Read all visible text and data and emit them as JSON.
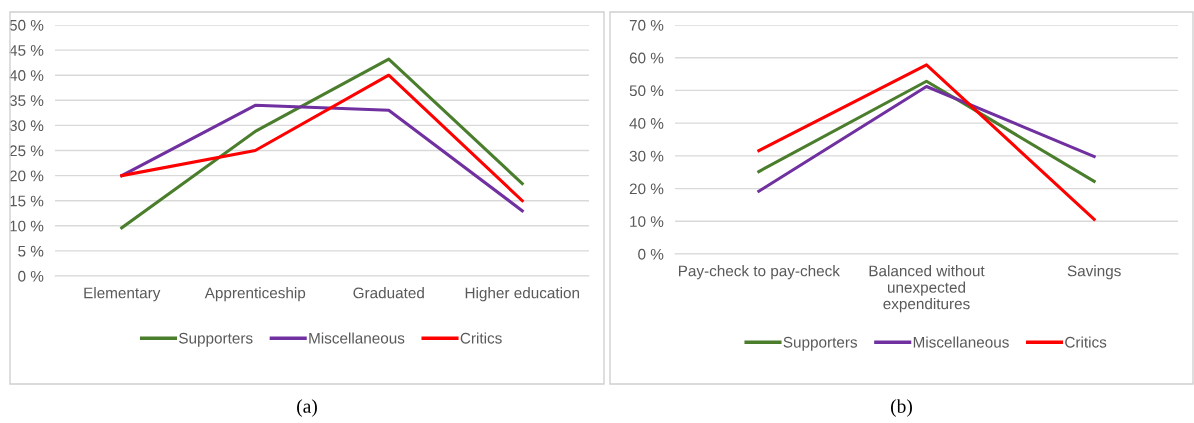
{
  "chart_data": [
    {
      "type": "line",
      "categories": [
        "Elementary",
        "Apprenticeship",
        "Graduated",
        "Higher education"
      ],
      "series": [
        {
          "name": "Supporters",
          "color": "#4a7d2c",
          "values": [
            9.6,
            28.8,
            43.2,
            18.4
          ]
        },
        {
          "name": "Miscellaneous",
          "color": "#7030a0",
          "values": [
            20,
            34,
            33,
            13
          ]
        },
        {
          "name": "Critics",
          "color": "#ff0000",
          "values": [
            20,
            25,
            40,
            15
          ]
        }
      ],
      "ylim": [
        0,
        50
      ],
      "yticks": [
        {
          "value": 0,
          "label": "0 %"
        },
        {
          "value": 5,
          "label": "5 %"
        },
        {
          "value": 10,
          "label": "10 %"
        },
        {
          "value": 15,
          "label": "15 %"
        },
        {
          "value": 20,
          "label": "20 %"
        },
        {
          "value": 25,
          "label": "25 %"
        },
        {
          "value": 30,
          "label": "30 %"
        },
        {
          "value": 35,
          "label": "35 %"
        },
        {
          "value": 40,
          "label": "40 %"
        },
        {
          "value": 45,
          "label": "45 %"
        },
        {
          "value": 50,
          "label": "50 %"
        }
      ],
      "grid": "y",
      "legend": "bottom",
      "marker": "none",
      "line_style": "solid",
      "annotations": [
        "(a)"
      ]
    },
    {
      "type": "line",
      "categories": [
        "Pay-check to pay-check",
        "Balanced without\nunexpected\nexpenditures",
        "Savings"
      ],
      "series": [
        {
          "name": "Supporters",
          "color": "#4a7d2c",
          "values": [
            25.2,
            52.8,
            22.2
          ]
        },
        {
          "name": "Miscellaneous",
          "color": "#7030a0",
          "values": [
            19.2,
            51.2,
            29.8
          ]
        },
        {
          "name": "Critics",
          "color": "#ff0000",
          "values": [
            31.6,
            57.8,
            10.6
          ]
        }
      ],
      "ylim": [
        0,
        70
      ],
      "yticks": [
        {
          "value": 0,
          "label": "0 %"
        },
        {
          "value": 10,
          "label": "10 %"
        },
        {
          "value": 20,
          "label": "20 %"
        },
        {
          "value": 30,
          "label": "30 %"
        },
        {
          "value": 40,
          "label": "40 %"
        },
        {
          "value": 50,
          "label": "50 %"
        },
        {
          "value": 60,
          "label": "60 %"
        },
        {
          "value": 70,
          "label": "70 %"
        }
      ],
      "grid": "y",
      "legend": "bottom",
      "marker": "none",
      "line_style": "solid",
      "annotations": [
        "(b)"
      ]
    }
  ]
}
